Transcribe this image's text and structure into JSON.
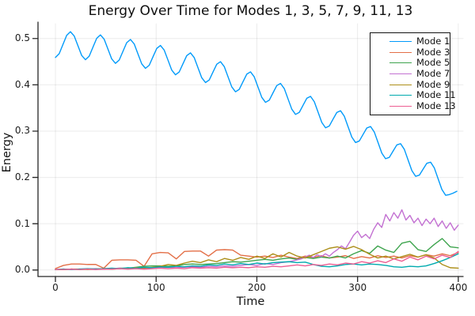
{
  "figure": {
    "background": "#ffffff"
  },
  "chart_data": {
    "type": "line",
    "title": "Energy Over Time for Modes 1, 3, 5, 7, 9, 11, 13",
    "xlabel": "Time",
    "ylabel": "Energy",
    "xlim": [
      -17.3,
      404.8
    ],
    "ylim": [
      -0.014,
      0.532
    ],
    "grid": true,
    "legend": {
      "position": "top-right",
      "border_color": "#111111",
      "background": "#ffffff"
    },
    "axis_color": "#262626",
    "grid_color": "rgba(0,0,0,0.08)",
    "xticks": {
      "values": [
        0,
        100,
        200,
        300,
        400
      ],
      "labels": [
        "0",
        "100",
        "200",
        "300",
        "400"
      ]
    },
    "yticks": {
      "values": [
        0,
        0.1,
        0.2,
        0.3,
        0.4,
        0.5
      ],
      "labels": [
        "0.0",
        "0.1",
        "0.2",
        "0.3",
        "0.4",
        "0.5"
      ]
    },
    "shared_x": [
      0,
      8,
      16,
      24,
      32,
      40,
      48,
      56,
      64,
      72,
      80,
      88,
      96,
      104,
      112,
      120,
      128,
      136,
      144,
      152,
      160,
      168,
      176,
      184,
      192,
      200,
      208,
      216,
      224,
      232,
      240,
      248,
      256,
      264,
      272,
      280,
      288,
      296,
      304,
      312,
      320,
      328,
      336,
      344,
      352,
      360,
      368,
      376,
      384,
      392,
      400
    ],
    "series": [
      {
        "name": "Mode 1",
        "color": "#009AFA",
        "x": [
          0,
          3.73,
          7.45,
          11.18,
          14.9,
          18.63,
          22.35,
          26.08,
          29.8,
          33.53,
          37.25,
          40.98,
          44.7,
          48.43,
          52.15,
          55.88,
          59.6,
          63.33,
          67.05,
          70.78,
          74.5,
          78.23,
          81.95,
          85.68,
          89.4,
          93.13,
          96.85,
          100.58,
          104.3,
          108.03,
          111.75,
          115.48,
          119.2,
          122.93,
          126.65,
          130.38,
          134.1,
          137.83,
          141.55,
          145.28,
          149,
          152.73,
          156.45,
          160.18,
          163.9,
          167.63,
          171.35,
          175.08,
          178.8,
          182.53,
          186.25,
          189.98,
          193.7,
          197.43,
          201.15,
          204.88,
          208.6,
          212.33,
          216.05,
          219.78,
          223.5,
          227.23,
          230.95,
          234.68,
          238.4,
          242.13,
          245.85,
          249.58,
          253.3,
          257.03,
          260.75,
          264.48,
          268.2,
          271.93,
          275.65,
          279.38,
          283.1,
          286.83,
          290.55,
          294.28,
          298,
          301.73,
          305.45,
          309.18,
          312.9,
          316.63,
          320.35,
          324.08,
          327.8,
          331.53,
          335.25,
          338.98,
          342.7,
          346.43,
          350.15,
          353.88,
          357.6,
          361.33,
          365.05,
          368.78,
          372.5,
          376.23,
          379.95,
          383.68,
          387.4,
          391.13,
          394.85,
          398.58
        ],
        "y": [
          0.459,
          0.4671,
          0.487,
          0.5069,
          0.5147,
          0.5055,
          0.4845,
          0.4634,
          0.4542,
          0.4618,
          0.4812,
          0.5004,
          0.5078,
          0.4984,
          0.4771,
          0.4559,
          0.4464,
          0.4535,
          0.4723,
          0.491,
          0.4979,
          0.4882,
          0.4668,
          0.4453,
          0.4356,
          0.4422,
          0.4604,
          0.4785,
          0.485,
          0.4749,
          0.4534,
          0.4318,
          0.4217,
          0.4279,
          0.4455,
          0.463,
          0.469,
          0.4587,
          0.4369,
          0.4152,
          0.4049,
          0.4106,
          0.4276,
          0.4445,
          0.45,
          0.4394,
          0.4175,
          0.3956,
          0.385,
          0.3902,
          0.4067,
          0.423,
          0.428,
          0.4171,
          0.3951,
          0.373,
          0.3621,
          0.3669,
          0.3827,
          0.3984,
          0.403,
          0.3918,
          0.3696,
          0.3474,
          0.3361,
          0.3405,
          0.3557,
          0.3709,
          0.375,
          0.3635,
          0.3411,
          0.3187,
          0.3072,
          0.3111,
          0.3258,
          0.3403,
          0.344,
          0.3322,
          0.3096,
          0.2871,
          0.2753,
          0.2787,
          0.2928,
          0.3068,
          0.3099,
          0.2979,
          0.2752,
          0.2524,
          0.2404,
          0.2433,
          0.2568,
          0.2702,
          0.2729,
          0.2606,
          0.2377,
          0.2148,
          0.2024,
          0.2049,
          0.2178,
          0.2306,
          0.2329,
          0.2203,
          0.1972,
          0.1741,
          0.1615,
          0.163,
          0.166,
          0.17
        ]
      },
      {
        "name": "Mode 3",
        "color": "#E36F47",
        "y": [
          0.003,
          0.01,
          0.013,
          0.013,
          0.012,
          0.012,
          0.004,
          0.021,
          0.022,
          0.022,
          0.021,
          0.008,
          0.035,
          0.038,
          0.037,
          0.024,
          0.04,
          0.041,
          0.041,
          0.03,
          0.043,
          0.044,
          0.043,
          0.032,
          0.03,
          0.028,
          0.03,
          0.027,
          0.032,
          0.028,
          0.025,
          0.03,
          0.027,
          0.031,
          0.026,
          0.028,
          0.031,
          0.025,
          0.029,
          0.026,
          0.031,
          0.027,
          0.03,
          0.026,
          0.031,
          0.028,
          0.033,
          0.03,
          0.035,
          0.031,
          0.038
        ]
      },
      {
        "name": "Mode 5",
        "color": "#3EA44E",
        "y": [
          0.001,
          0.001,
          0.002,
          0.001,
          0.002,
          0.002,
          0.003,
          0.003,
          0.004,
          0.004,
          0.006,
          0.008,
          0.009,
          0.009,
          0.008,
          0.009,
          0.012,
          0.013,
          0.012,
          0.013,
          0.014,
          0.016,
          0.018,
          0.017,
          0.019,
          0.021,
          0.023,
          0.021,
          0.024,
          0.026,
          0.023,
          0.027,
          0.025,
          0.028,
          0.026,
          0.03,
          0.026,
          0.035,
          0.042,
          0.036,
          0.052,
          0.043,
          0.038,
          0.058,
          0.062,
          0.044,
          0.04,
          0.055,
          0.068,
          0.05,
          0.048
        ]
      },
      {
        "name": "Mode 7",
        "color": "#C371D2",
        "x": [
          0,
          8,
          16,
          24,
          32,
          40,
          48,
          56,
          64,
          72,
          80,
          88,
          96,
          104,
          112,
          120,
          128,
          136,
          144,
          152,
          160,
          168,
          176,
          184,
          192,
          200,
          208,
          216,
          224,
          232,
          240,
          244,
          248,
          252,
          256,
          260,
          264,
          268,
          272,
          276,
          280,
          284,
          288,
          292,
          296,
          300,
          304,
          308,
          312,
          316,
          320,
          324,
          328,
          332,
          336,
          340,
          344,
          348,
          352,
          356,
          360,
          364,
          368,
          372,
          376,
          380,
          384,
          388,
          392,
          396,
          400
        ],
        "y": [
          0.001,
          0.002,
          0.001,
          0.002,
          0.002,
          0.003,
          0.002,
          0.003,
          0.004,
          0.003,
          0.004,
          0.005,
          0.004,
          0.005,
          0.006,
          0.005,
          0.006,
          0.007,
          0.006,
          0.008,
          0.007,
          0.009,
          0.008,
          0.01,
          0.012,
          0.01,
          0.014,
          0.012,
          0.016,
          0.018,
          0.022,
          0.024,
          0.028,
          0.032,
          0.027,
          0.033,
          0.029,
          0.035,
          0.03,
          0.038,
          0.044,
          0.052,
          0.046,
          0.06,
          0.075,
          0.084,
          0.07,
          0.077,
          0.068,
          0.088,
          0.102,
          0.092,
          0.12,
          0.106,
          0.124,
          0.112,
          0.13,
          0.108,
          0.118,
          0.102,
          0.112,
          0.096,
          0.11,
          0.1,
          0.112,
          0.094,
          0.106,
          0.09,
          0.102,
          0.086,
          0.097
        ]
      },
      {
        "name": "Mode 9",
        "color": "#AC8E18",
        "y": [
          0.001,
          0.001,
          0.002,
          0.002,
          0.001,
          0.002,
          0.003,
          0.002,
          0.003,
          0.004,
          0.005,
          0.004,
          0.006,
          0.008,
          0.012,
          0.01,
          0.015,
          0.019,
          0.016,
          0.022,
          0.018,
          0.025,
          0.021,
          0.027,
          0.023,
          0.03,
          0.025,
          0.035,
          0.028,
          0.038,
          0.03,
          0.026,
          0.033,
          0.04,
          0.047,
          0.05,
          0.045,
          0.051,
          0.044,
          0.034,
          0.026,
          0.03,
          0.024,
          0.029,
          0.034,
          0.028,
          0.033,
          0.026,
          0.012,
          0.005,
          0.004
        ]
      },
      {
        "name": "Mode 11",
        "color": "#00AAAE",
        "y": [
          0.001,
          0.002,
          0.001,
          0.002,
          0.003,
          0.002,
          0.003,
          0.004,
          0.003,
          0.005,
          0.004,
          0.006,
          0.005,
          0.007,
          0.006,
          0.008,
          0.007,
          0.009,
          0.008,
          0.011,
          0.01,
          0.013,
          0.011,
          0.014,
          0.012,
          0.015,
          0.013,
          0.016,
          0.017,
          0.018,
          0.016,
          0.017,
          0.012,
          0.008,
          0.007,
          0.009,
          0.012,
          0.013,
          0.011,
          0.013,
          0.012,
          0.01,
          0.007,
          0.006,
          0.008,
          0.007,
          0.009,
          0.014,
          0.02,
          0.027,
          0.035
        ]
      },
      {
        "name": "Mode 13",
        "color": "#ED5E93",
        "y": [
          0.001,
          0.001,
          0.002,
          0.001,
          0.002,
          0.001,
          0.002,
          0.002,
          0.003,
          0.002,
          0.003,
          0.002,
          0.003,
          0.004,
          0.003,
          0.004,
          0.003,
          0.005,
          0.004,
          0.005,
          0.004,
          0.006,
          0.005,
          0.006,
          0.005,
          0.007,
          0.006,
          0.008,
          0.007,
          0.009,
          0.011,
          0.009,
          0.012,
          0.01,
          0.013,
          0.011,
          0.015,
          0.013,
          0.018,
          0.015,
          0.02,
          0.016,
          0.024,
          0.019,
          0.028,
          0.022,
          0.03,
          0.024,
          0.032,
          0.027,
          0.04
        ]
      }
    ]
  }
}
